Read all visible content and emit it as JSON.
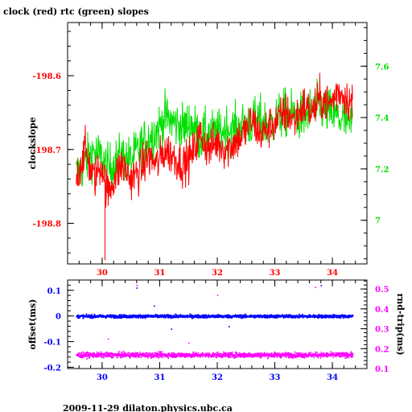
{
  "title": "clock (red) rtc (green) slopes",
  "footer": "2009-11-29  dilaton.physics.ubc.ca",
  "colors": {
    "red": "#ff0000",
    "green": "#00e000",
    "blue": "#0000ff",
    "magenta": "#ff00ff",
    "black": "#000000"
  },
  "chart_data": [
    {
      "type": "line",
      "title": "clock (red) rtc (green) slopes",
      "xlabel": "",
      "ylabel": "clockslope",
      "xlim": [
        29.4,
        34.6
      ],
      "ylim": [
        -198.855,
        -198.528
      ],
      "y2lim": [
        6.83,
        7.77
      ],
      "grid": false,
      "x_ticks": [
        "30",
        "31",
        "32",
        "33",
        "34"
      ],
      "y_ticks": [
        "-198.6",
        "-198.7",
        "-198.8"
      ],
      "y2_ticks": [
        "7.6",
        "7.4",
        "7.2",
        "7"
      ],
      "series": [
        {
          "name": "clock (red)",
          "axis": "left",
          "x": [
            29.55,
            29.7,
            29.85,
            30.0,
            30.1,
            30.2,
            30.35,
            30.5,
            30.65,
            30.8,
            30.95,
            31.1,
            31.25,
            31.4,
            31.55,
            31.7,
            31.85,
            32.0,
            32.15,
            32.3,
            32.45,
            32.6,
            32.75,
            32.9,
            33.05,
            33.2,
            33.35,
            33.5,
            33.65,
            33.8,
            33.95,
            34.1,
            34.25,
            34.35
          ],
          "y": [
            -198.74,
            -198.7,
            -198.74,
            -198.72,
            -198.76,
            -198.74,
            -198.72,
            -198.74,
            -198.73,
            -198.71,
            -198.72,
            -198.7,
            -198.71,
            -198.72,
            -198.71,
            -198.68,
            -198.7,
            -198.69,
            -198.7,
            -198.69,
            -198.68,
            -198.66,
            -198.68,
            -198.67,
            -198.66,
            -198.65,
            -198.66,
            -198.64,
            -198.65,
            -198.63,
            -198.64,
            -198.62,
            -198.63,
            -198.64
          ]
        },
        {
          "name": "rtc (green)",
          "axis": "right",
          "x": [
            29.55,
            29.7,
            29.85,
            30.0,
            30.1,
            30.2,
            30.35,
            30.5,
            30.65,
            30.8,
            30.95,
            31.1,
            31.25,
            31.4,
            31.55,
            31.7,
            31.85,
            32.0,
            32.15,
            32.3,
            32.45,
            32.6,
            32.75,
            32.9,
            33.05,
            33.2,
            33.35,
            33.5,
            33.65,
            33.8,
            33.95,
            34.1,
            34.25,
            34.35
          ],
          "y": [
            7.18,
            7.22,
            7.27,
            7.24,
            7.2,
            7.22,
            7.25,
            7.23,
            7.28,
            7.32,
            7.35,
            7.4,
            7.38,
            7.36,
            7.38,
            7.32,
            7.34,
            7.33,
            7.36,
            7.35,
            7.37,
            7.38,
            7.39,
            7.37,
            7.4,
            7.42,
            7.41,
            7.4,
            7.43,
            7.44,
            7.42,
            7.4,
            7.38,
            7.37
          ]
        }
      ]
    },
    {
      "type": "scatter",
      "xlabel": "",
      "ylabel": "offset(ms)",
      "y2label": "rnd-trip(ms)",
      "xlim": [
        29.4,
        34.6
      ],
      "ylim": [
        -0.205,
        0.14
      ],
      "y2lim": [
        0.1,
        0.545
      ],
      "grid": false,
      "x_ticks": [
        "30",
        "31",
        "32",
        "33",
        "34"
      ],
      "y_ticks": [
        "0.1",
        "0",
        "-0.1",
        "-0.2"
      ],
      "y2_ticks": [
        "0.5",
        "0.4",
        "0.3",
        "0.2",
        "0.1"
      ],
      "series": [
        {
          "name": "offset",
          "axis": "left",
          "x": [
            29.55,
            30.0,
            30.5,
            31.0,
            31.5,
            32.0,
            32.5,
            33.0,
            33.5,
            34.0,
            34.35
          ],
          "y": [
            0.0,
            0.0,
            0.0,
            0.0,
            0.0,
            0.0,
            0.0,
            0.0,
            0.0,
            0.0,
            0.0
          ]
        },
        {
          "name": "rnd-trip",
          "axis": "right",
          "x": [
            29.55,
            30.0,
            30.5,
            31.0,
            31.5,
            32.0,
            32.5,
            33.0,
            33.5,
            34.0,
            34.35
          ],
          "y": [
            0.17,
            0.17,
            0.17,
            0.17,
            0.17,
            0.17,
            0.17,
            0.17,
            0.17,
            0.17,
            0.17
          ]
        }
      ]
    }
  ]
}
